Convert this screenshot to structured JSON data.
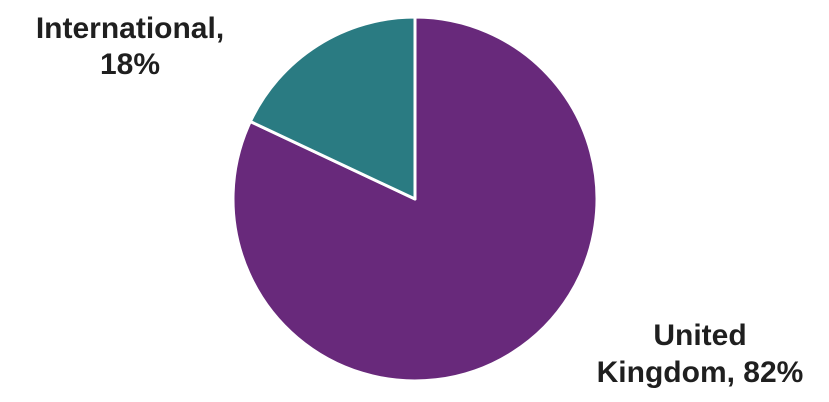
{
  "chart_data": {
    "type": "pie",
    "title": "",
    "slices": [
      {
        "name": "United Kingdom",
        "value": 82,
        "color": "#68297b",
        "label_lines": [
          "United",
          "Kingdom, 82%"
        ]
      },
      {
        "name": "International",
        "value": 18,
        "color": "#2a7b82",
        "label_lines": [
          "International,",
          "18%"
        ]
      }
    ],
    "start": "12 o'clock",
    "direction": "clockwise",
    "legend": "none",
    "slice_border_color": "#ffffff"
  }
}
